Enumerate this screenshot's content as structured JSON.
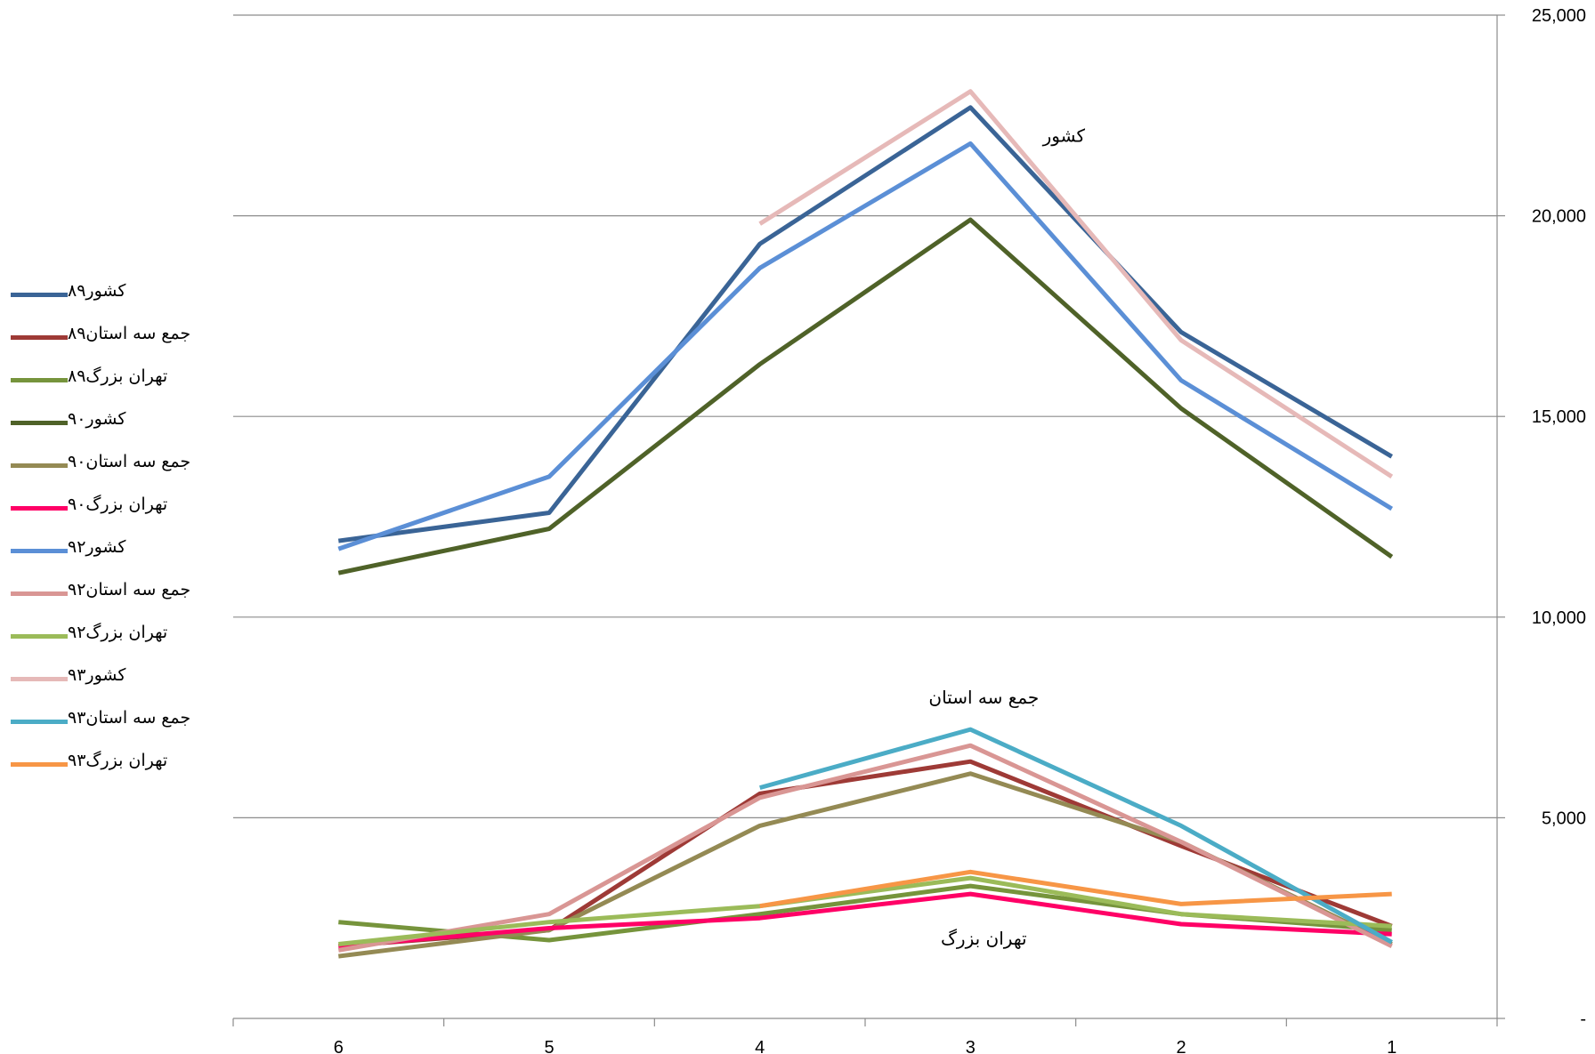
{
  "chart_data": {
    "type": "line",
    "title": "",
    "xlabel": "",
    "ylabel": "",
    "categories": [
      "6",
      "5",
      "4",
      "3",
      "2",
      "1"
    ],
    "ylim": [
      0,
      25000
    ],
    "yticks": [
      0,
      5000,
      10000,
      15000,
      20000,
      25000
    ],
    "ytick_labels": [
      "-",
      "5,000",
      "10,000",
      "15,000",
      "20,000",
      "25,000"
    ],
    "y_axis_side": "right",
    "grid": true,
    "legend_position": "left",
    "annotations": [
      {
        "text": "کشور",
        "x": "3",
        "y": 22000
      },
      {
        "text": "جمع سه استان",
        "x": "3",
        "y": 8000
      },
      {
        "text": "تهران بزرگ",
        "x": "3",
        "y": 2000
      }
    ],
    "series": [
      {
        "name": "کشور۸۹",
        "color": "#3A6496",
        "values": [
          11900,
          12600,
          19300,
          22700,
          17100,
          14000
        ]
      },
      {
        "name": "جمع سه استان۸۹",
        "color": "#9E3A36",
        "values": [
          1800,
          2200,
          5600,
          6400,
          4300,
          2300
        ]
      },
      {
        "name": "تهران بزرگ۸۹",
        "color": "#76943C",
        "values": [
          2400,
          1950,
          2600,
          3300,
          2600,
          2200
        ]
      },
      {
        "name": "کشور۹۰",
        "color": "#4F6228",
        "values": [
          11100,
          12200,
          16300,
          19900,
          15200,
          11500
        ]
      },
      {
        "name": "جمع سه استان۹۰",
        "color": "#948A54",
        "values": [
          1550,
          2200,
          4800,
          6100,
          4400,
          1850
        ]
      },
      {
        "name": "تهران بزرگ۹۰",
        "color": "#FF0066",
        "values": [
          1800,
          2250,
          2500,
          3100,
          2350,
          2100
        ]
      },
      {
        "name": "کشور۹۲",
        "color": "#5B8FD6",
        "values": [
          11700,
          13500,
          18700,
          21800,
          15900,
          12700
        ]
      },
      {
        "name": "جمع سه استان۹۲",
        "color": "#D99694",
        "values": [
          1700,
          2600,
          5500,
          6800,
          4400,
          1800
        ]
      },
      {
        "name": "تهران بزرگ۹۲",
        "color": "#9BBB59",
        "values": [
          1850,
          2400,
          2800,
          3500,
          2600,
          2300
        ]
      },
      {
        "name": "کشور۹۳",
        "color": "#E6B9B8",
        "values": [
          null,
          null,
          19800,
          23100,
          16900,
          13500
        ]
      },
      {
        "name": "جمع سه استان۹۳",
        "color": "#4BACC6",
        "values": [
          null,
          null,
          5750,
          7200,
          4800,
          1900
        ]
      },
      {
        "name": "تهران بزرگ۹۳",
        "color": "#F79646",
        "values": [
          null,
          null,
          2800,
          3650,
          2850,
          3100
        ]
      }
    ]
  }
}
